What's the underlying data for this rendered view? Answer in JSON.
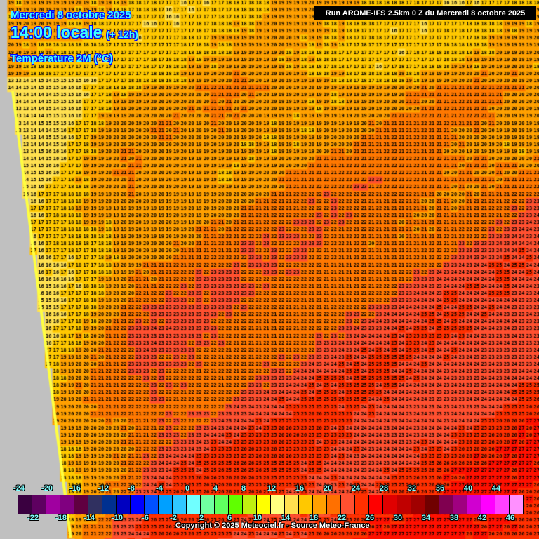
{
  "header": {
    "date": "Mercredi 8 octobre 2025",
    "time": "14:00 locale",
    "offset": "(+ 12h)",
    "parameter": "Température 2M (°C)",
    "run": "Run AROME-IFS 2.5km 0 Z du Mercredi 8 octobre 2025"
  },
  "legend": {
    "labels": [
      "-24",
      "-22",
      "-20",
      "-18",
      "-16",
      "-14",
      "-12",
      "-10",
      "-8",
      "-6",
      "-4",
      "-2",
      "0",
      "2",
      "4",
      "6",
      "8",
      "10",
      "12",
      "14",
      "16",
      "18",
      "20",
      "22",
      "24",
      "26",
      "28",
      "30",
      "32",
      "34",
      "36",
      "38",
      "40",
      "42",
      "44",
      "46"
    ],
    "colors": [
      "#3a0040",
      "#5e0060",
      "#a000a0",
      "#800080",
      "#600040",
      "#303060",
      "#003090",
      "#0000c0",
      "#0000ff",
      "#0050ff",
      "#00a0ff",
      "#30c8ff",
      "#70ffff",
      "#70ffa0",
      "#60ff60",
      "#60ff00",
      "#c0f010",
      "#ffff00",
      "#ffff80",
      "#ffe050",
      "#ffc800",
      "#ffa000",
      "#ff7000",
      "#ff5030",
      "#ff3000",
      "#ff0000",
      "#e00000",
      "#c00000",
      "#a00000",
      "#700000",
      "#800050",
      "#a00080",
      "#d000d0",
      "#ff00ff",
      "#ff40ff",
      "#ff90ff"
    ]
  },
  "map": {
    "value_range": [
      12,
      27
    ],
    "land_color": "#c0c0c0"
  },
  "footer": {
    "copyright": "Copyright © 2025 Meteociel.fr - Source Meteo-France"
  }
}
